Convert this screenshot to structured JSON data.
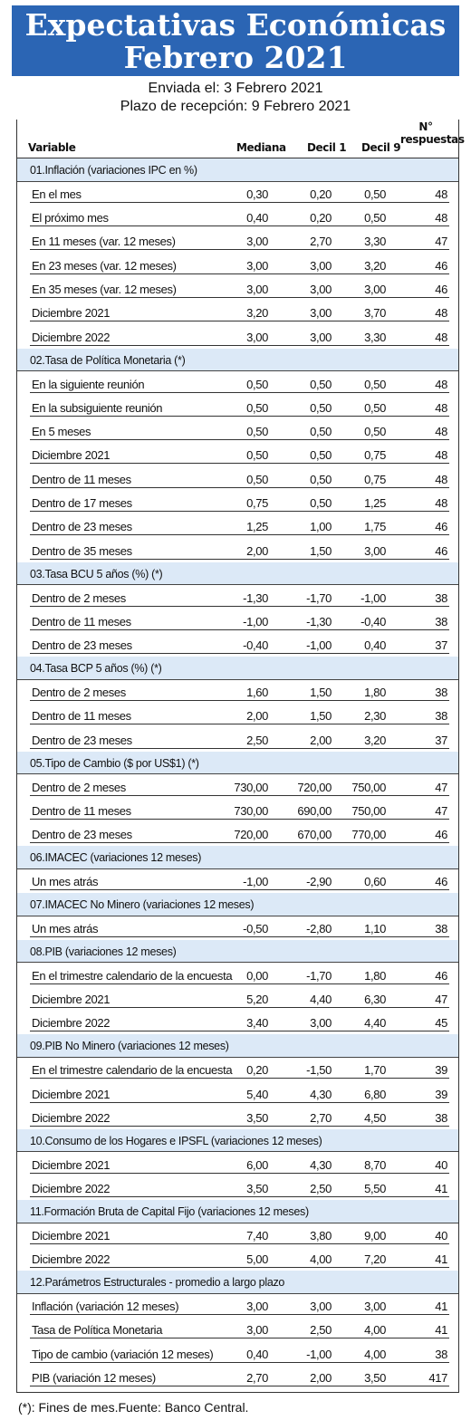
{
  "banner": {
    "line1": "Expectativas Económicas",
    "line2": "Febrero 2021"
  },
  "meta": {
    "sent": "Enviada el: 3 Febrero 2021",
    "deadline": "Plazo de recepción: 9 Febrero 2021"
  },
  "table": {
    "headers": {
      "variable": "Variable",
      "median": "Mediana",
      "decil1": "Decil 1",
      "decil9": "Decil 9",
      "n_line1": "N°",
      "n_line2": "respuestas"
    },
    "sections": [
      {
        "title": "01.Inflación (variaciones IPC en %)",
        "rows": [
          [
            "En el mes",
            "0,30",
            "0,20",
            "0,50",
            "48"
          ],
          [
            "El próximo mes",
            "0,40",
            "0,20",
            "0,50",
            "48"
          ],
          [
            "En 11 meses (var. 12 meses)",
            "3,00",
            "2,70",
            "3,30",
            "47"
          ],
          [
            "En 23 meses (var. 12 meses)",
            "3,00",
            "3,00",
            "3,20",
            "46"
          ],
          [
            "En 35 meses (var. 12 meses)",
            "3,00",
            "3,00",
            "3,00",
            "46"
          ],
          [
            "Diciembre 2021",
            "3,20",
            "3,00",
            "3,70",
            "48"
          ],
          [
            "Diciembre 2022",
            "3,00",
            "3,00",
            "3,30",
            "48"
          ]
        ]
      },
      {
        "title": "02.Tasa de Política Monetaria (*)",
        "rows": [
          [
            "En la siguiente reunión",
            "0,50",
            "0,50",
            "0,50",
            "48"
          ],
          [
            "En la subsiguiente reunión",
            "0,50",
            "0,50",
            "0,50",
            "48"
          ],
          [
            "En 5 meses",
            "0,50",
            "0,50",
            "0,50",
            "48"
          ],
          [
            "Diciembre 2021",
            "0,50",
            "0,50",
            "0,75",
            "48"
          ],
          [
            "Dentro de 11 meses",
            "0,50",
            "0,50",
            "0,75",
            "48"
          ],
          [
            "Dentro de 17 meses",
            "0,75",
            "0,50",
            "1,25",
            "48"
          ],
          [
            "Dentro de 23 meses",
            "1,25",
            "1,00",
            "1,75",
            "46"
          ],
          [
            "Dentro de 35 meses",
            "2,00",
            "1,50",
            "3,00",
            "46"
          ]
        ]
      },
      {
        "title": "03.Tasa BCU 5 años (%) (*)",
        "rows": [
          [
            "Dentro de 2 meses",
            "-1,30",
            "-1,70",
            "-1,00",
            "38"
          ],
          [
            "Dentro de 11 meses",
            "-1,00",
            "-1,30",
            "-0,40",
            "38"
          ],
          [
            "Dentro de 23 meses",
            "-0,40",
            "-1,00",
            "0,40",
            "37"
          ]
        ]
      },
      {
        "title": "04.Tasa BCP 5 años (%) (*)",
        "rows": [
          [
            "Dentro de 2 meses",
            "1,60",
            "1,50",
            "1,80",
            "38"
          ],
          [
            "Dentro de 11 meses",
            "2,00",
            "1,50",
            "2,30",
            "38"
          ],
          [
            "Dentro de 23 meses",
            "2,50",
            "2,00",
            "3,20",
            "37"
          ]
        ]
      },
      {
        "title": "05.Tipo de Cambio ($ por US$1) (*)",
        "rows": [
          [
            "Dentro de 2 meses",
            "730,00",
            "720,00",
            "750,00",
            "47"
          ],
          [
            "Dentro de 11 meses",
            "730,00",
            "690,00",
            "750,00",
            "47"
          ],
          [
            "Dentro de 23 meses",
            "720,00",
            "670,00",
            "770,00",
            "46"
          ]
        ]
      },
      {
        "title": "06.IMACEC (variaciones 12 meses)",
        "rows": [
          [
            "Un mes atrás",
            "-1,00",
            "-2,90",
            "0,60",
            "46"
          ]
        ]
      },
      {
        "title": "07.IMACEC No Minero (variaciones 12 meses)",
        "rows": [
          [
            "Un mes atrás",
            "-0,50",
            "-2,80",
            "1,10",
            "38"
          ]
        ]
      },
      {
        "title": "08.PIB (variaciones 12 meses)",
        "rows": [
          [
            "En el trimestre calendario de la encuesta",
            "0,00",
            "-1,70",
            "1,80",
            "46"
          ],
          [
            "Diciembre 2021",
            "5,20",
            "4,40",
            "6,30",
            "47"
          ],
          [
            "Diciembre 2022",
            "3,40",
            "3,00",
            "4,40",
            "45"
          ]
        ]
      },
      {
        "title": "09.PIB No Minero (variaciones 12 meses)",
        "rows": [
          [
            "En el trimestre calendario de la encuesta",
            "0,20",
            "-1,50",
            "1,70",
            "39"
          ],
          [
            "Diciembre 2021",
            "5,40",
            "4,30",
            "6,80",
            "39"
          ],
          [
            "Diciembre 2022",
            "3,50",
            "2,70",
            "4,50",
            "38"
          ]
        ]
      },
      {
        "title": "10.Consumo de los Hogares e IPSFL (variaciones 12 meses)",
        "rows": [
          [
            "Diciembre 2021",
            "6,00",
            "4,30",
            "8,70",
            "40"
          ],
          [
            "Diciembre 2022",
            "3,50",
            "2,50",
            "5,50",
            "41"
          ]
        ]
      },
      {
        "title": "11.Formación Bruta de Capital Fijo (variaciones 12 meses)",
        "rows": [
          [
            "Diciembre 2021",
            "7,40",
            "3,80",
            "9,00",
            "40"
          ],
          [
            "Diciembre 2022",
            "5,00",
            "4,00",
            "7,20",
            "41"
          ]
        ]
      },
      {
        "title": "12.Parámetros Estructurales - promedio a largo plazo",
        "rows": [
          [
            "Inflación (variación 12 meses)",
            "3,00",
            "3,00",
            "3,00",
            "41"
          ],
          [
            "Tasa de Política Monetaria",
            "3,00",
            "2,50",
            "4,00",
            "41"
          ],
          [
            "Tipo de cambio (variación 12 meses)",
            "0,40",
            "-1,00",
            "4,00",
            "38"
          ],
          [
            "PIB (variación 12 meses)",
            "2,70",
            "2,00",
            "3,50",
            "417"
          ]
        ]
      }
    ]
  },
  "footnote": "(*): Fines de mes.Fuente: Banco Central."
}
